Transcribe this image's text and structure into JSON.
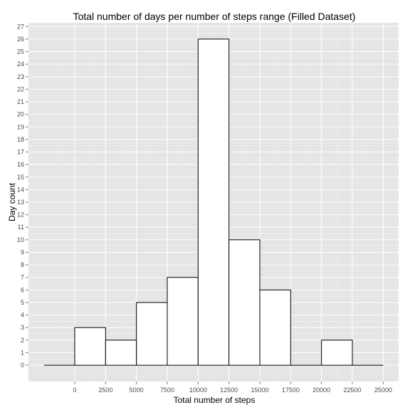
{
  "chart_data": {
    "type": "bar",
    "title": "Total number of days per number of steps range (Filled Dataset)",
    "xlabel": "Total number of steps",
    "ylabel": "Day count",
    "bin_width": 2500,
    "bins": [
      {
        "start": -2500,
        "end": 0,
        "count": 0
      },
      {
        "start": 0,
        "end": 2500,
        "count": 3
      },
      {
        "start": 2500,
        "end": 5000,
        "count": 2
      },
      {
        "start": 5000,
        "end": 7500,
        "count": 5
      },
      {
        "start": 7500,
        "end": 10000,
        "count": 7
      },
      {
        "start": 10000,
        "end": 12500,
        "count": 26
      },
      {
        "start": 12500,
        "end": 15000,
        "count": 10
      },
      {
        "start": 15000,
        "end": 17500,
        "count": 6
      },
      {
        "start": 17500,
        "end": 20000,
        "count": 0
      },
      {
        "start": 20000,
        "end": 22500,
        "count": 2
      },
      {
        "start": 22500,
        "end": 25000,
        "count": 0
      }
    ],
    "xticks": [
      0,
      2500,
      5000,
      7500,
      10000,
      12500,
      15000,
      17500,
      20000,
      22500,
      25000
    ],
    "yticks": [
      0,
      1,
      2,
      3,
      4,
      5,
      6,
      7,
      8,
      9,
      10,
      11,
      12,
      13,
      14,
      15,
      16,
      17,
      18,
      19,
      20,
      21,
      22,
      23,
      24,
      25,
      26,
      27
    ],
    "xlim": [
      -3750,
      26250
    ],
    "ylim": [
      -1.3,
      27.3
    ],
    "grid": true,
    "colors": {
      "panel": "#e5e5e5",
      "grid_major": "#ffffff",
      "grid_minor": "#f2f2f2",
      "bar_fill": "#ffffff",
      "bar_stroke": "#000000",
      "tick": "#7f7f7f"
    }
  }
}
